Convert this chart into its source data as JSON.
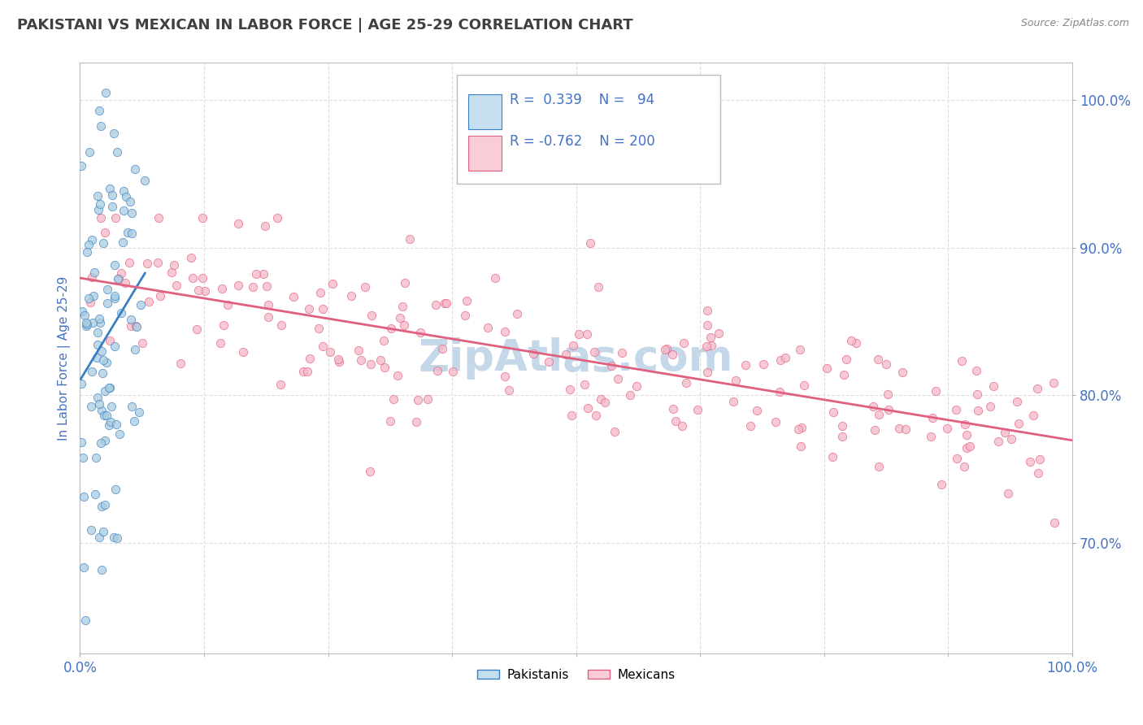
{
  "title": "PAKISTANI VS MEXICAN IN LABOR FORCE | AGE 25-29 CORRELATION CHART",
  "source_text": "Source: ZipAtlas.com",
  "ylabel": "In Labor Force | Age 25-29",
  "x_min": 0.0,
  "x_max": 1.0,
  "y_min": 0.625,
  "y_max": 1.025,
  "y_tick_labels": [
    "70.0%",
    "80.0%",
    "90.0%",
    "100.0%"
  ],
  "y_tick_values": [
    0.7,
    0.8,
    0.9,
    1.0
  ],
  "pakistani_R": 0.339,
  "pakistani_N": 94,
  "mexican_R": -0.762,
  "mexican_N": 200,
  "blue_dot_color": "#a8cce0",
  "blue_line_color": "#3a7fc1",
  "pink_dot_color": "#f5b8c8",
  "pink_line_color": "#e06080",
  "title_color": "#404040",
  "axis_label_color": "#4472c4",
  "watermark_color": "#c5d8ea",
  "background_color": "#ffffff",
  "grid_color": "#dddddd",
  "legend_blue_fill": "#c5dff0",
  "legend_pink_fill": "#f9ccd8"
}
